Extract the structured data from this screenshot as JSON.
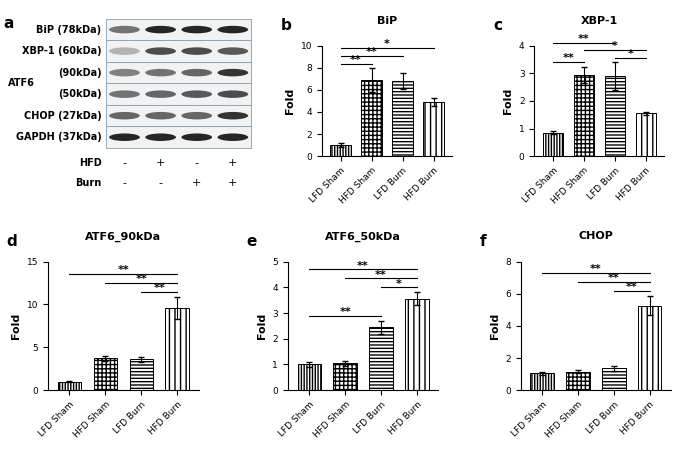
{
  "chart_data": [
    {
      "panel": "b",
      "type": "bar",
      "title": "BiP",
      "y_label": "Fold",
      "categories": [
        "LFD Sham",
        "HFD Sham",
        "LFD Burn",
        "HFD Burn"
      ],
      "values": [
        1.0,
        6.9,
        6.8,
        4.9
      ],
      "errors": [
        0.2,
        1.1,
        0.7,
        0.4
      ],
      "ylim": [
        0,
        10
      ],
      "yticks": [
        0,
        2,
        4,
        6,
        8,
        10
      ],
      "color": "#ffffff",
      "significance": [
        {
          "pair": [
            0,
            1
          ],
          "text": "**"
        },
        {
          "pair": [
            0,
            2
          ],
          "text": "**"
        },
        {
          "pair": [
            0,
            3
          ],
          "text": "*"
        }
      ]
    },
    {
      "panel": "c",
      "type": "bar",
      "title": "XBP-1",
      "y_label": "Fold",
      "categories": [
        "LFD Sham",
        "HFD Sham",
        "LFD Burn",
        "HFD Burn"
      ],
      "values": [
        0.85,
        2.95,
        2.9,
        1.55
      ],
      "errors": [
        0.05,
        0.3,
        0.5,
        0.05
      ],
      "ylim": [
        0,
        4
      ],
      "yticks": [
        0,
        1,
        2,
        3,
        4
      ],
      "color": "#ffffff",
      "significance": [
        {
          "pair": [
            0,
            1
          ],
          "text": "**"
        },
        {
          "pair": [
            2,
            3
          ],
          "text": "*"
        },
        {
          "pair": [
            1,
            3
          ],
          "text": "*"
        },
        {
          "pair": [
            0,
            2
          ],
          "text": "**"
        }
      ]
    },
    {
      "panel": "d",
      "type": "bar",
      "title": "ATF6_90kDa",
      "y_label": "Fold",
      "categories": [
        "LFD Sham",
        "HFD Sham",
        "LFD Burn",
        "HFD Burn"
      ],
      "values": [
        1.0,
        3.7,
        3.6,
        9.6
      ],
      "errors": [
        0.1,
        0.3,
        0.3,
        1.3
      ],
      "ylim": [
        0,
        15
      ],
      "yticks": [
        0,
        5,
        10,
        15
      ],
      "color": "#ffffff",
      "significance": [
        {
          "pair": [
            2,
            3
          ],
          "text": "**"
        },
        {
          "pair": [
            1,
            3
          ],
          "text": "**"
        },
        {
          "pair": [
            0,
            3
          ],
          "text": "**"
        }
      ]
    },
    {
      "panel": "e",
      "type": "bar",
      "title": "ATF6_50kDa",
      "y_label": "Fold",
      "categories": [
        "LFD Sham",
        "HFD Sham",
        "LFD Burn",
        "HFD Burn"
      ],
      "values": [
        1.0,
        1.05,
        2.45,
        3.55
      ],
      "errors": [
        0.1,
        0.1,
        0.25,
        0.25
      ],
      "ylim": [
        0,
        5
      ],
      "yticks": [
        0,
        1,
        2,
        3,
        4,
        5
      ],
      "color": "#ffffff",
      "significance": [
        {
          "pair": [
            0,
            2
          ],
          "text": "**"
        },
        {
          "pair": [
            2,
            3
          ],
          "text": "*"
        },
        {
          "pair": [
            1,
            3
          ],
          "text": "**"
        },
        {
          "pair": [
            0,
            3
          ],
          "text": "**"
        }
      ]
    },
    {
      "panel": "f",
      "type": "bar",
      "title": "CHOP",
      "y_label": "Fold",
      "categories": [
        "LFD Sham",
        "HFD Sham",
        "LFD Burn",
        "HFD Burn"
      ],
      "values": [
        1.05,
        1.15,
        1.35,
        5.25
      ],
      "errors": [
        0.1,
        0.1,
        0.15,
        0.6
      ],
      "ylim": [
        0,
        8
      ],
      "yticks": [
        0,
        2,
        4,
        6,
        8
      ],
      "color": "#ffffff",
      "significance": [
        {
          "pair": [
            2,
            3
          ],
          "text": "**"
        },
        {
          "pair": [
            1,
            3
          ],
          "text": "**"
        },
        {
          "pair": [
            0,
            3
          ],
          "text": "**"
        }
      ]
    }
  ],
  "blot": {
    "panel": "a",
    "bands": [
      "BiP (78kDa)",
      "XBP-1 (60kDa)",
      "(90kDa)",
      "(50kDa)",
      "CHOP (27kDa)",
      "GAPDH (37kDa)"
    ],
    "group_label": "ATF6",
    "conditions": [
      {
        "name": "HFD",
        "marks": [
          "-",
          "+",
          "-",
          "+"
        ]
      },
      {
        "name": "Burn",
        "marks": [
          "-",
          "-",
          "+",
          "+"
        ]
      }
    ]
  }
}
